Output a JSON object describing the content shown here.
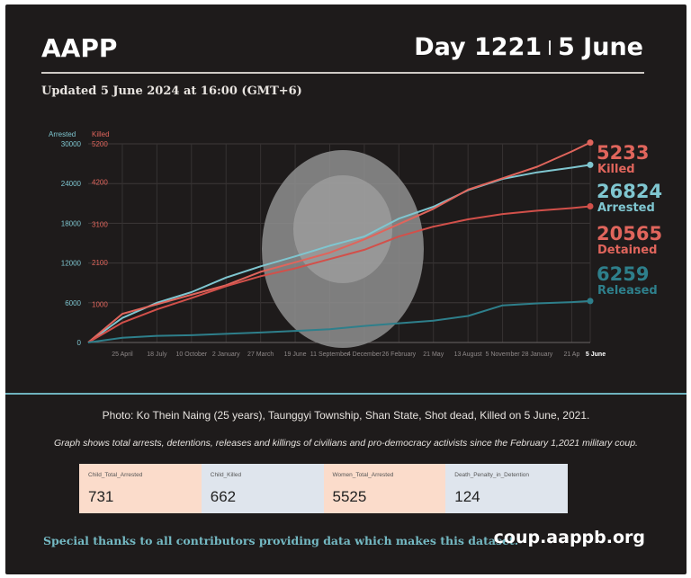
{
  "header": {
    "org": "AAPP",
    "day": "Day 1221",
    "separator": "|",
    "date": "5 June",
    "updated": "Updated 5 June 2024 at 16:00 (GMT+6)"
  },
  "colors": {
    "background": "#1e1b1b",
    "arrested": "#7fc6d0",
    "killed": "#e0655c",
    "detained": "#d2504a",
    "released": "#2e7f8b",
    "card_peach": "#fbdccb",
    "card_blue": "#dfe5ed"
  },
  "chart_data": {
    "type": "line",
    "left_axis": {
      "label": "Arrested",
      "ticks": [
        0,
        6000,
        12000,
        18000,
        24000,
        30000
      ],
      "ylim": [
        0,
        30000
      ]
    },
    "right_axis": {
      "label": "Killed",
      "ticks": [
        1000,
        2100,
        3100,
        4200,
        5200
      ]
    },
    "x_tick_labels": [
      "25 April",
      "18 July",
      "10 October",
      "2 January",
      "27 March",
      "19 June",
      "11 September",
      "4 December",
      "26 February",
      "21 May",
      "13 August",
      "5 November",
      "28 January",
      "21 Ap",
      "5 June"
    ],
    "x": [
      "2021-02-01",
      "2021-04-25",
      "2021-07-18",
      "2021-10-10",
      "2022-01-02",
      "2022-03-27",
      "2022-06-19",
      "2022-09-11",
      "2022-12-04",
      "2023-02-26",
      "2023-05-21",
      "2023-08-13",
      "2023-11-05",
      "2024-01-28",
      "2024-04-21",
      "2024-06-05"
    ],
    "series": [
      {
        "name": "Arrested",
        "axis": "left",
        "values": [
          0,
          3700,
          6000,
          7600,
          9800,
          11500,
          13000,
          14600,
          16000,
          18700,
          20500,
          23000,
          24700,
          25700,
          26400,
          26824
        ]
      },
      {
        "name": "Killed",
        "axis": "right",
        "values": [
          0,
          750,
          1000,
          1250,
          1500,
          1850,
          2100,
          2350,
          2700,
          3100,
          3500,
          4000,
          4300,
          4600,
          5000,
          5233
        ]
      },
      {
        "name": "Detained",
        "axis": "left",
        "values": [
          0,
          3000,
          5000,
          6700,
          8500,
          10000,
          11200,
          12600,
          14000,
          16000,
          17500,
          18600,
          19400,
          19900,
          20300,
          20565
        ]
      },
      {
        "name": "Released",
        "axis": "left",
        "values": [
          0,
          700,
          1000,
          1100,
          1300,
          1500,
          1750,
          2000,
          2500,
          2900,
          3300,
          4000,
          5600,
          5900,
          6100,
          6259
        ]
      }
    ],
    "end_labels": [
      {
        "value": "5233",
        "name": "Killed"
      },
      {
        "value": "26824",
        "name": "Arrested"
      },
      {
        "value": "20565",
        "name": "Detained"
      },
      {
        "value": "6259",
        "name": "Released"
      }
    ],
    "grid": true
  },
  "footer": {
    "photo_caption": "Photo: Ko Thein Naing (25 years), Taunggyi Township, Shan State, Shot dead, Killed on 5 June, 2021.",
    "graph_note": "Graph shows total arrests, detentions, releases and killings of civilians and pro-democracy activists since the February 1,2021 military coup.",
    "thanks": "Special thanks to all contributors providing data which makes this dataset.",
    "site": "coup.aappb.org"
  },
  "cards": [
    {
      "label": "Child_Total_Arrested",
      "value": "731",
      "color": "#fbdccb"
    },
    {
      "label": "Child_Killed",
      "value": "662",
      "color": "#dfe5ed"
    },
    {
      "label": "Women_Total_Arrested",
      "value": "5525",
      "color": "#fbdccb"
    },
    {
      "label": "Death_Penalty_in_Detention",
      "value": "124",
      "color": "#dfe5ed"
    }
  ]
}
